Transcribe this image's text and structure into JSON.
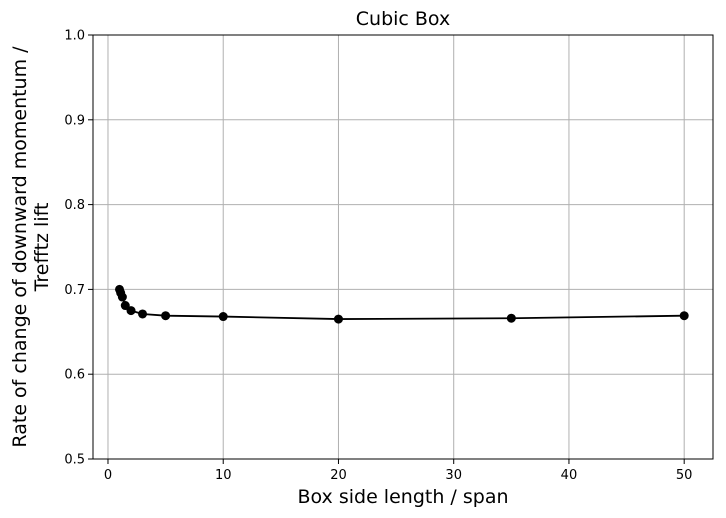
{
  "chart_data": {
    "type": "line",
    "title": "Cubic Box",
    "xlabel": "Box side length / span",
    "ylabel_lines": [
      "Rate of change of downward momentum /",
      "Trefftz lift"
    ],
    "xlim": [
      -1.3,
      52.5
    ],
    "ylim": [
      0.5,
      1.0
    ],
    "xticks": [
      0,
      10,
      20,
      30,
      40,
      50
    ],
    "xtick_labels": [
      "0",
      "10",
      "20",
      "30",
      "40",
      "50"
    ],
    "yticks": [
      0.5,
      0.6,
      0.7,
      0.8,
      0.9,
      1.0
    ],
    "ytick_labels": [
      "0.5",
      "0.6",
      "0.7",
      "0.8",
      "0.9",
      "1.0"
    ],
    "grid": true,
    "series": [
      {
        "x": [
          1,
          1.1,
          1.25,
          1.5,
          2,
          3,
          5,
          10,
          20,
          35,
          50
        ],
        "y": [
          0.7,
          0.696,
          0.691,
          0.681,
          0.675,
          0.671,
          0.669,
          0.668,
          0.665,
          0.666,
          0.669
        ],
        "color": "#000000",
        "marker": "circle"
      }
    ]
  },
  "colors": {
    "grid": "#b0b0b0",
    "axis": "#000000",
    "line": "#000000"
  }
}
